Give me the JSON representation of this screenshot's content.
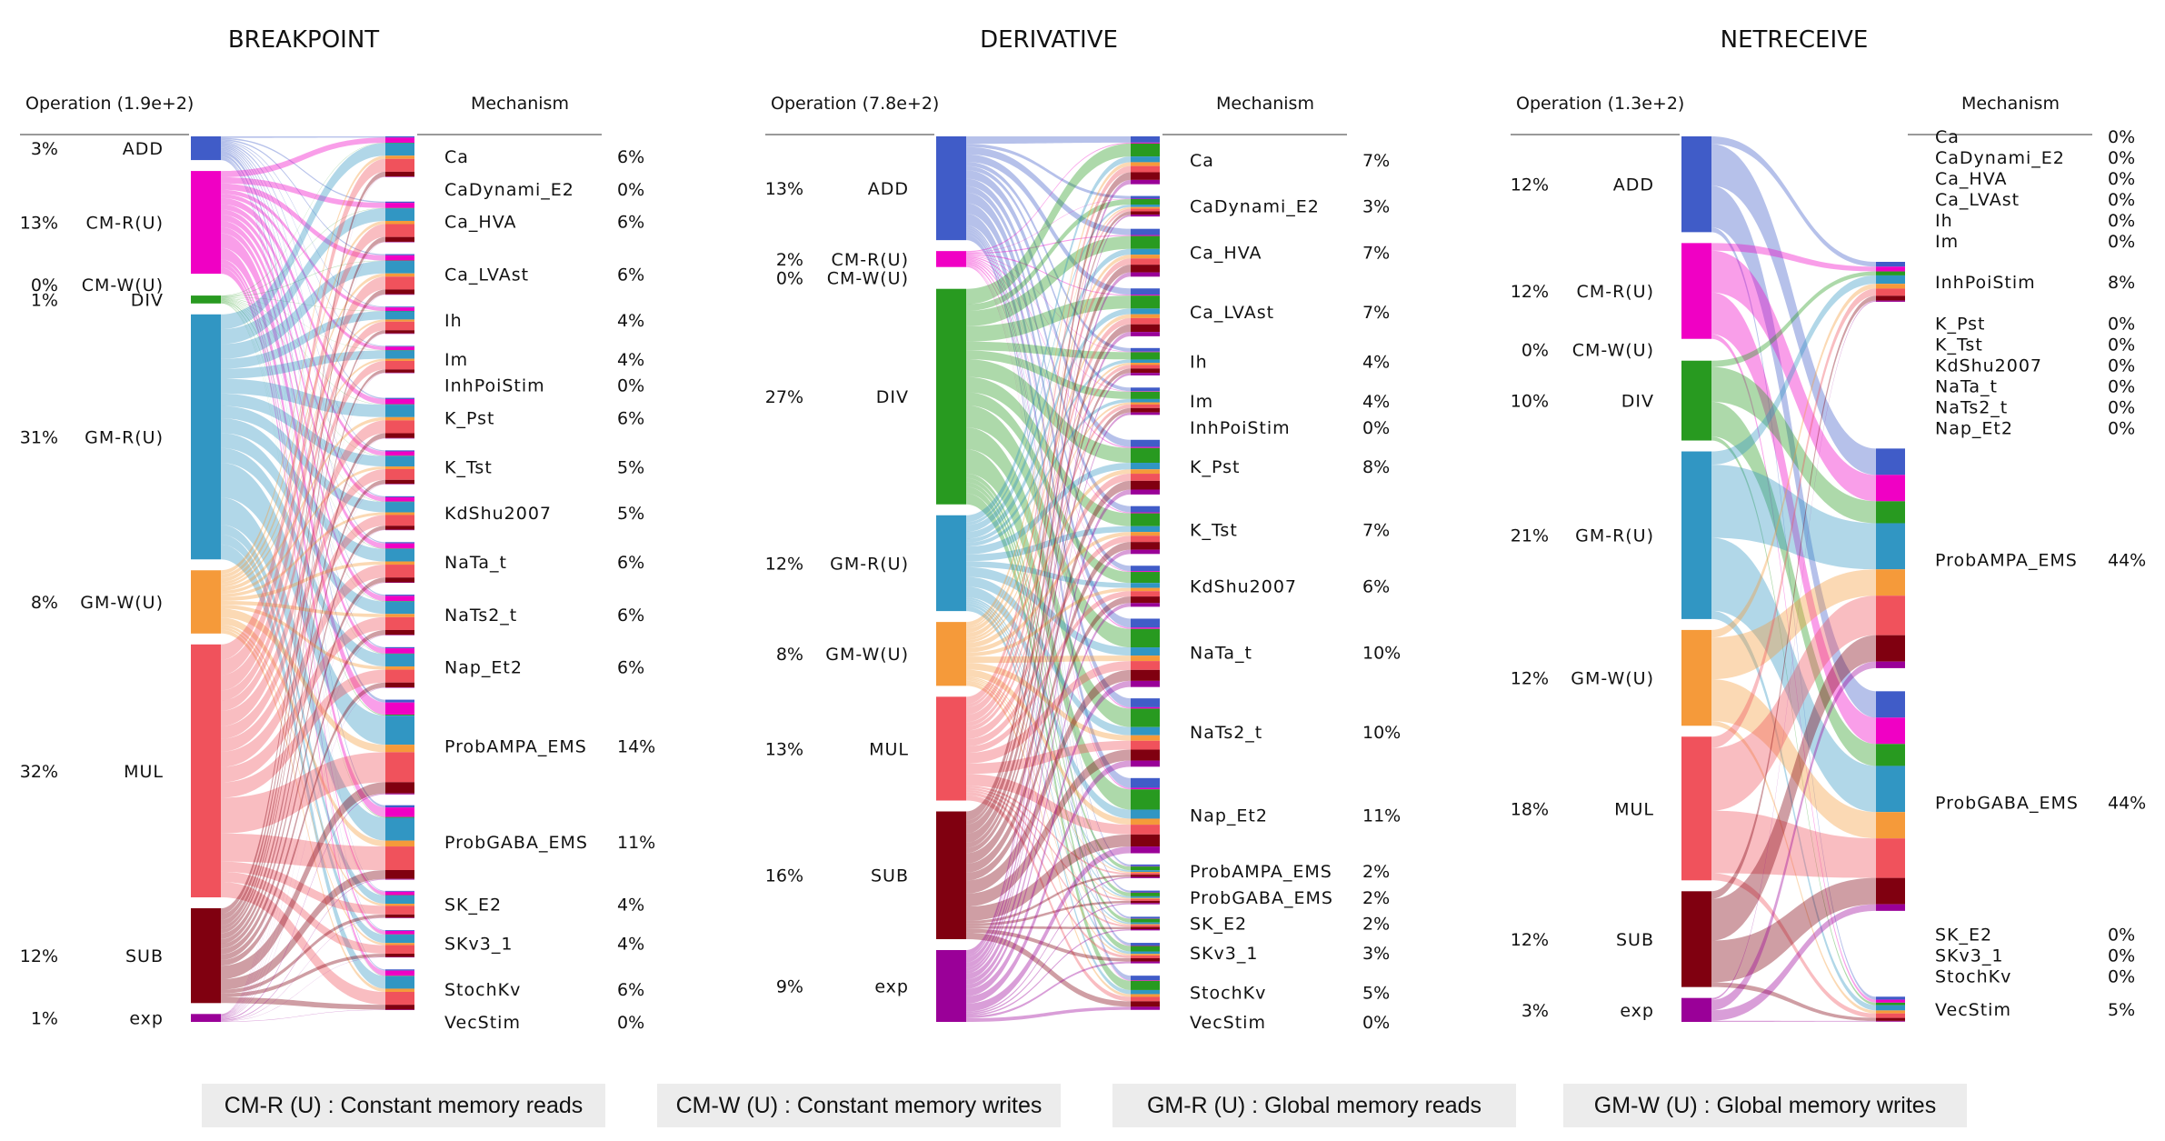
{
  "chart_data": [
    {
      "type": "sankey",
      "title": "BREAKPOINT",
      "operation_header": "Operation (1.9e+2)",
      "mechanism_header": "Mechanism",
      "operations": [
        {
          "label": "ADD",
          "pct": 3,
          "pct_label": "3%"
        },
        {
          "label": "CM-R(U)",
          "pct": 13,
          "pct_label": "13%"
        },
        {
          "label": "CM-W(U)",
          "pct": 0,
          "pct_label": "0%"
        },
        {
          "label": "DIV",
          "pct": 1,
          "pct_label": "1%"
        },
        {
          "label": "GM-R(U)",
          "pct": 31,
          "pct_label": "31%"
        },
        {
          "label": "GM-W(U)",
          "pct": 8,
          "pct_label": "8%"
        },
        {
          "label": "MUL",
          "pct": 32,
          "pct_label": "32%"
        },
        {
          "label": "SUB",
          "pct": 12,
          "pct_label": "12%"
        },
        {
          "label": "exp",
          "pct": 1,
          "pct_label": "1%"
        }
      ],
      "mechanisms": [
        {
          "label": "Ca",
          "pct": 6,
          "pct_label": "6%"
        },
        {
          "label": "CaDynami_E2",
          "pct": 0,
          "pct_label": "0%"
        },
        {
          "label": "Ca_HVA",
          "pct": 6,
          "pct_label": "6%"
        },
        {
          "label": "Ca_LVAst",
          "pct": 6,
          "pct_label": "6%"
        },
        {
          "label": "Ih",
          "pct": 4,
          "pct_label": "4%"
        },
        {
          "label": "Im",
          "pct": 4,
          "pct_label": "4%"
        },
        {
          "label": "InhPoiStim",
          "pct": 0,
          "pct_label": "0%"
        },
        {
          "label": "K_Pst",
          "pct": 6,
          "pct_label": "6%"
        },
        {
          "label": "K_Tst",
          "pct": 5,
          "pct_label": "5%"
        },
        {
          "label": "KdShu2007",
          "pct": 5,
          "pct_label": "5%"
        },
        {
          "label": "NaTa_t",
          "pct": 6,
          "pct_label": "6%"
        },
        {
          "label": "NaTs2_t",
          "pct": 6,
          "pct_label": "6%"
        },
        {
          "label": "Nap_Et2",
          "pct": 6,
          "pct_label": "6%"
        },
        {
          "label": "ProbAMPA_EMS",
          "pct": 14,
          "pct_label": "14%"
        },
        {
          "label": "ProbGABA_EMS",
          "pct": 11,
          "pct_label": "11%"
        },
        {
          "label": "SK_E2",
          "pct": 4,
          "pct_label": "4%"
        },
        {
          "label": "SKv3_1",
          "pct": 4,
          "pct_label": "4%"
        },
        {
          "label": "StochKv",
          "pct": 6,
          "pct_label": "6%"
        },
        {
          "label": "VecStim",
          "pct": 0,
          "pct_label": "0%"
        }
      ]
    },
    {
      "type": "sankey",
      "title": "DERIVATIVE",
      "operation_header": "Operation (7.8e+2)",
      "mechanism_header": "Mechanism",
      "operations": [
        {
          "label": "ADD",
          "pct": 13,
          "pct_label": "13%"
        },
        {
          "label": "CM-R(U)",
          "pct": 2,
          "pct_label": "2%"
        },
        {
          "label": "CM-W(U)",
          "pct": 0,
          "pct_label": "0%"
        },
        {
          "label": "DIV",
          "pct": 27,
          "pct_label": "27%"
        },
        {
          "label": "GM-R(U)",
          "pct": 12,
          "pct_label": "12%"
        },
        {
          "label": "GM-W(U)",
          "pct": 8,
          "pct_label": "8%"
        },
        {
          "label": "MUL",
          "pct": 13,
          "pct_label": "13%"
        },
        {
          "label": "SUB",
          "pct": 16,
          "pct_label": "16%"
        },
        {
          "label": "exp",
          "pct": 9,
          "pct_label": "9%"
        }
      ],
      "mechanisms": [
        {
          "label": "Ca",
          "pct": 7,
          "pct_label": "7%"
        },
        {
          "label": "CaDynami_E2",
          "pct": 3,
          "pct_label": "3%"
        },
        {
          "label": "Ca_HVA",
          "pct": 7,
          "pct_label": "7%"
        },
        {
          "label": "Ca_LVAst",
          "pct": 7,
          "pct_label": "7%"
        },
        {
          "label": "Ih",
          "pct": 4,
          "pct_label": "4%"
        },
        {
          "label": "Im",
          "pct": 4,
          "pct_label": "4%"
        },
        {
          "label": "InhPoiStim",
          "pct": 0,
          "pct_label": "0%"
        },
        {
          "label": "K_Pst",
          "pct": 8,
          "pct_label": "8%"
        },
        {
          "label": "K_Tst",
          "pct": 7,
          "pct_label": "7%"
        },
        {
          "label": "KdShu2007",
          "pct": 6,
          "pct_label": "6%"
        },
        {
          "label": "NaTa_t",
          "pct": 10,
          "pct_label": "10%"
        },
        {
          "label": "NaTs2_t",
          "pct": 10,
          "pct_label": "10%"
        },
        {
          "label": "Nap_Et2",
          "pct": 11,
          "pct_label": "11%"
        },
        {
          "label": "ProbAMPA_EMS",
          "pct": 2,
          "pct_label": "2%"
        },
        {
          "label": "ProbGABA_EMS",
          "pct": 2,
          "pct_label": "2%"
        },
        {
          "label": "SK_E2",
          "pct": 2,
          "pct_label": "2%"
        },
        {
          "label": "SKv3_1",
          "pct": 3,
          "pct_label": "3%"
        },
        {
          "label": "StochKv",
          "pct": 5,
          "pct_label": "5%"
        },
        {
          "label": "VecStim",
          "pct": 0,
          "pct_label": "0%"
        }
      ]
    },
    {
      "type": "sankey",
      "title": "NETRECEIVE",
      "operation_header": "Operation (1.3e+2)",
      "mechanism_header": "Mechanism",
      "operations": [
        {
          "label": "ADD",
          "pct": 12,
          "pct_label": "12%"
        },
        {
          "label": "CM-R(U)",
          "pct": 12,
          "pct_label": "12%"
        },
        {
          "label": "CM-W(U)",
          "pct": 0,
          "pct_label": "0%"
        },
        {
          "label": "DIV",
          "pct": 10,
          "pct_label": "10%"
        },
        {
          "label": "GM-R(U)",
          "pct": 21,
          "pct_label": "21%"
        },
        {
          "label": "GM-W(U)",
          "pct": 12,
          "pct_label": "12%"
        },
        {
          "label": "MUL",
          "pct": 18,
          "pct_label": "18%"
        },
        {
          "label": "SUB",
          "pct": 12,
          "pct_label": "12%"
        },
        {
          "label": "exp",
          "pct": 3,
          "pct_label": "3%"
        }
      ],
      "mechanisms": [
        {
          "label": "Ca",
          "pct": 0,
          "pct_label": "0%"
        },
        {
          "label": "CaDynami_E2",
          "pct": 0,
          "pct_label": "0%"
        },
        {
          "label": "Ca_HVA",
          "pct": 0,
          "pct_label": "0%"
        },
        {
          "label": "Ca_LVAst",
          "pct": 0,
          "pct_label": "0%"
        },
        {
          "label": "Ih",
          "pct": 0,
          "pct_label": "0%"
        },
        {
          "label": "Im",
          "pct": 0,
          "pct_label": "0%"
        },
        {
          "label": "InhPoiStim",
          "pct": 8,
          "pct_label": "8%"
        },
        {
          "label": "K_Pst",
          "pct": 0,
          "pct_label": "0%"
        },
        {
          "label": "K_Tst",
          "pct": 0,
          "pct_label": "0%"
        },
        {
          "label": "KdShu2007",
          "pct": 0,
          "pct_label": "0%"
        },
        {
          "label": "NaTa_t",
          "pct": 0,
          "pct_label": "0%"
        },
        {
          "label": "NaTs2_t",
          "pct": 0,
          "pct_label": "0%"
        },
        {
          "label": "Nap_Et2",
          "pct": 0,
          "pct_label": "0%"
        },
        {
          "label": "ProbAMPA_EMS",
          "pct": 44,
          "pct_label": "44%"
        },
        {
          "label": "ProbGABA_EMS",
          "pct": 44,
          "pct_label": "44%"
        },
        {
          "label": "SK_E2",
          "pct": 0,
          "pct_label": "0%"
        },
        {
          "label": "SKv3_1",
          "pct": 0,
          "pct_label": "0%"
        },
        {
          "label": "StochKv",
          "pct": 0,
          "pct_label": "0%"
        },
        {
          "label": "VecStim",
          "pct": 5,
          "pct_label": "5%"
        }
      ]
    }
  ],
  "operation_colors": {
    "ADD": "#405cc8",
    "CM-R(U)": "#f000c4",
    "CM-W(U)": "#a06ad0",
    "DIV": "#289a20",
    "GM-R(U)": "#3196c3",
    "GM-W(U)": "#f59a3a",
    "MUL": "#f0525c",
    "SUB": "#800010",
    "exp": "#9a0098"
  },
  "legend": [
    "CM-R (U) : Constant memory reads",
    "CM-W (U) : Constant memory writes",
    "GM-R (U) : Global memory reads",
    "GM-W (U) : Global memory writes"
  ]
}
